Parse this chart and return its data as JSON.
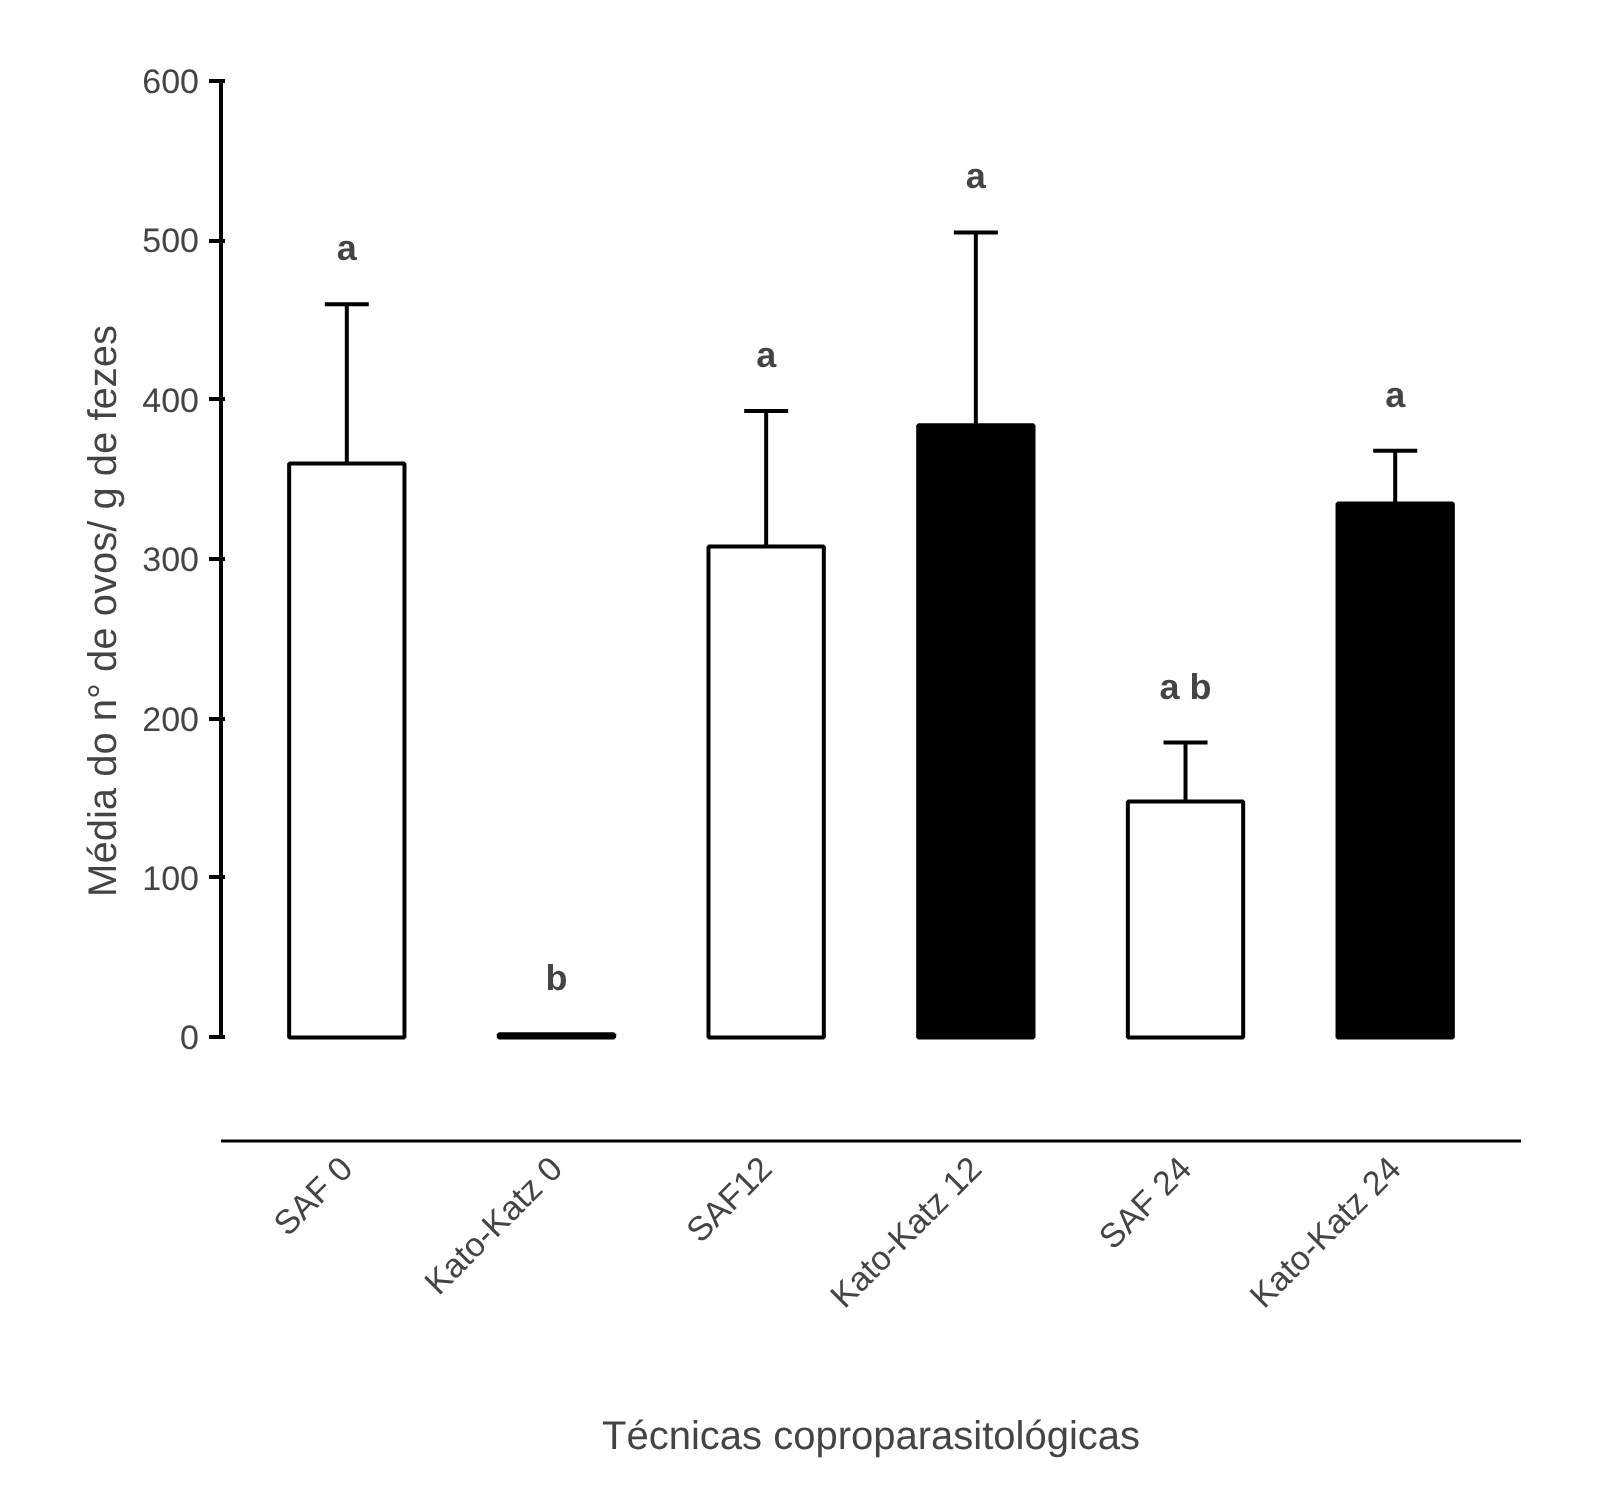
{
  "chart_data": {
    "type": "bar",
    "xlabel": "Técnicas coproparasitológicas",
    "ylabel": "Média do n° de ovos/ g de fezes",
    "categories": [
      "SAF 0",
      "Kato-Katz 0",
      "SAF12",
      "Kato-Katz 12",
      "SAF 24",
      "Kato-Katz 24"
    ],
    "values": [
      360,
      2,
      308,
      384,
      148,
      335
    ],
    "colors": [
      "#ffffff",
      "#000000",
      "#ffffff",
      "#000000",
      "#ffffff",
      "#000000"
    ],
    "errors": [
      [
        360,
        460
      ],
      null,
      [
        308,
        393
      ],
      [
        384,
        505
      ],
      [
        148,
        185
      ],
      [
        335,
        368
      ]
    ],
    "ylim": [
      -65,
      600
    ],
    "yticks": [
      0,
      100,
      200,
      300,
      400,
      500,
      600
    ],
    "grid": false,
    "annotations": [
      "a",
      "b",
      "a",
      "a",
      "a b",
      "a"
    ]
  }
}
